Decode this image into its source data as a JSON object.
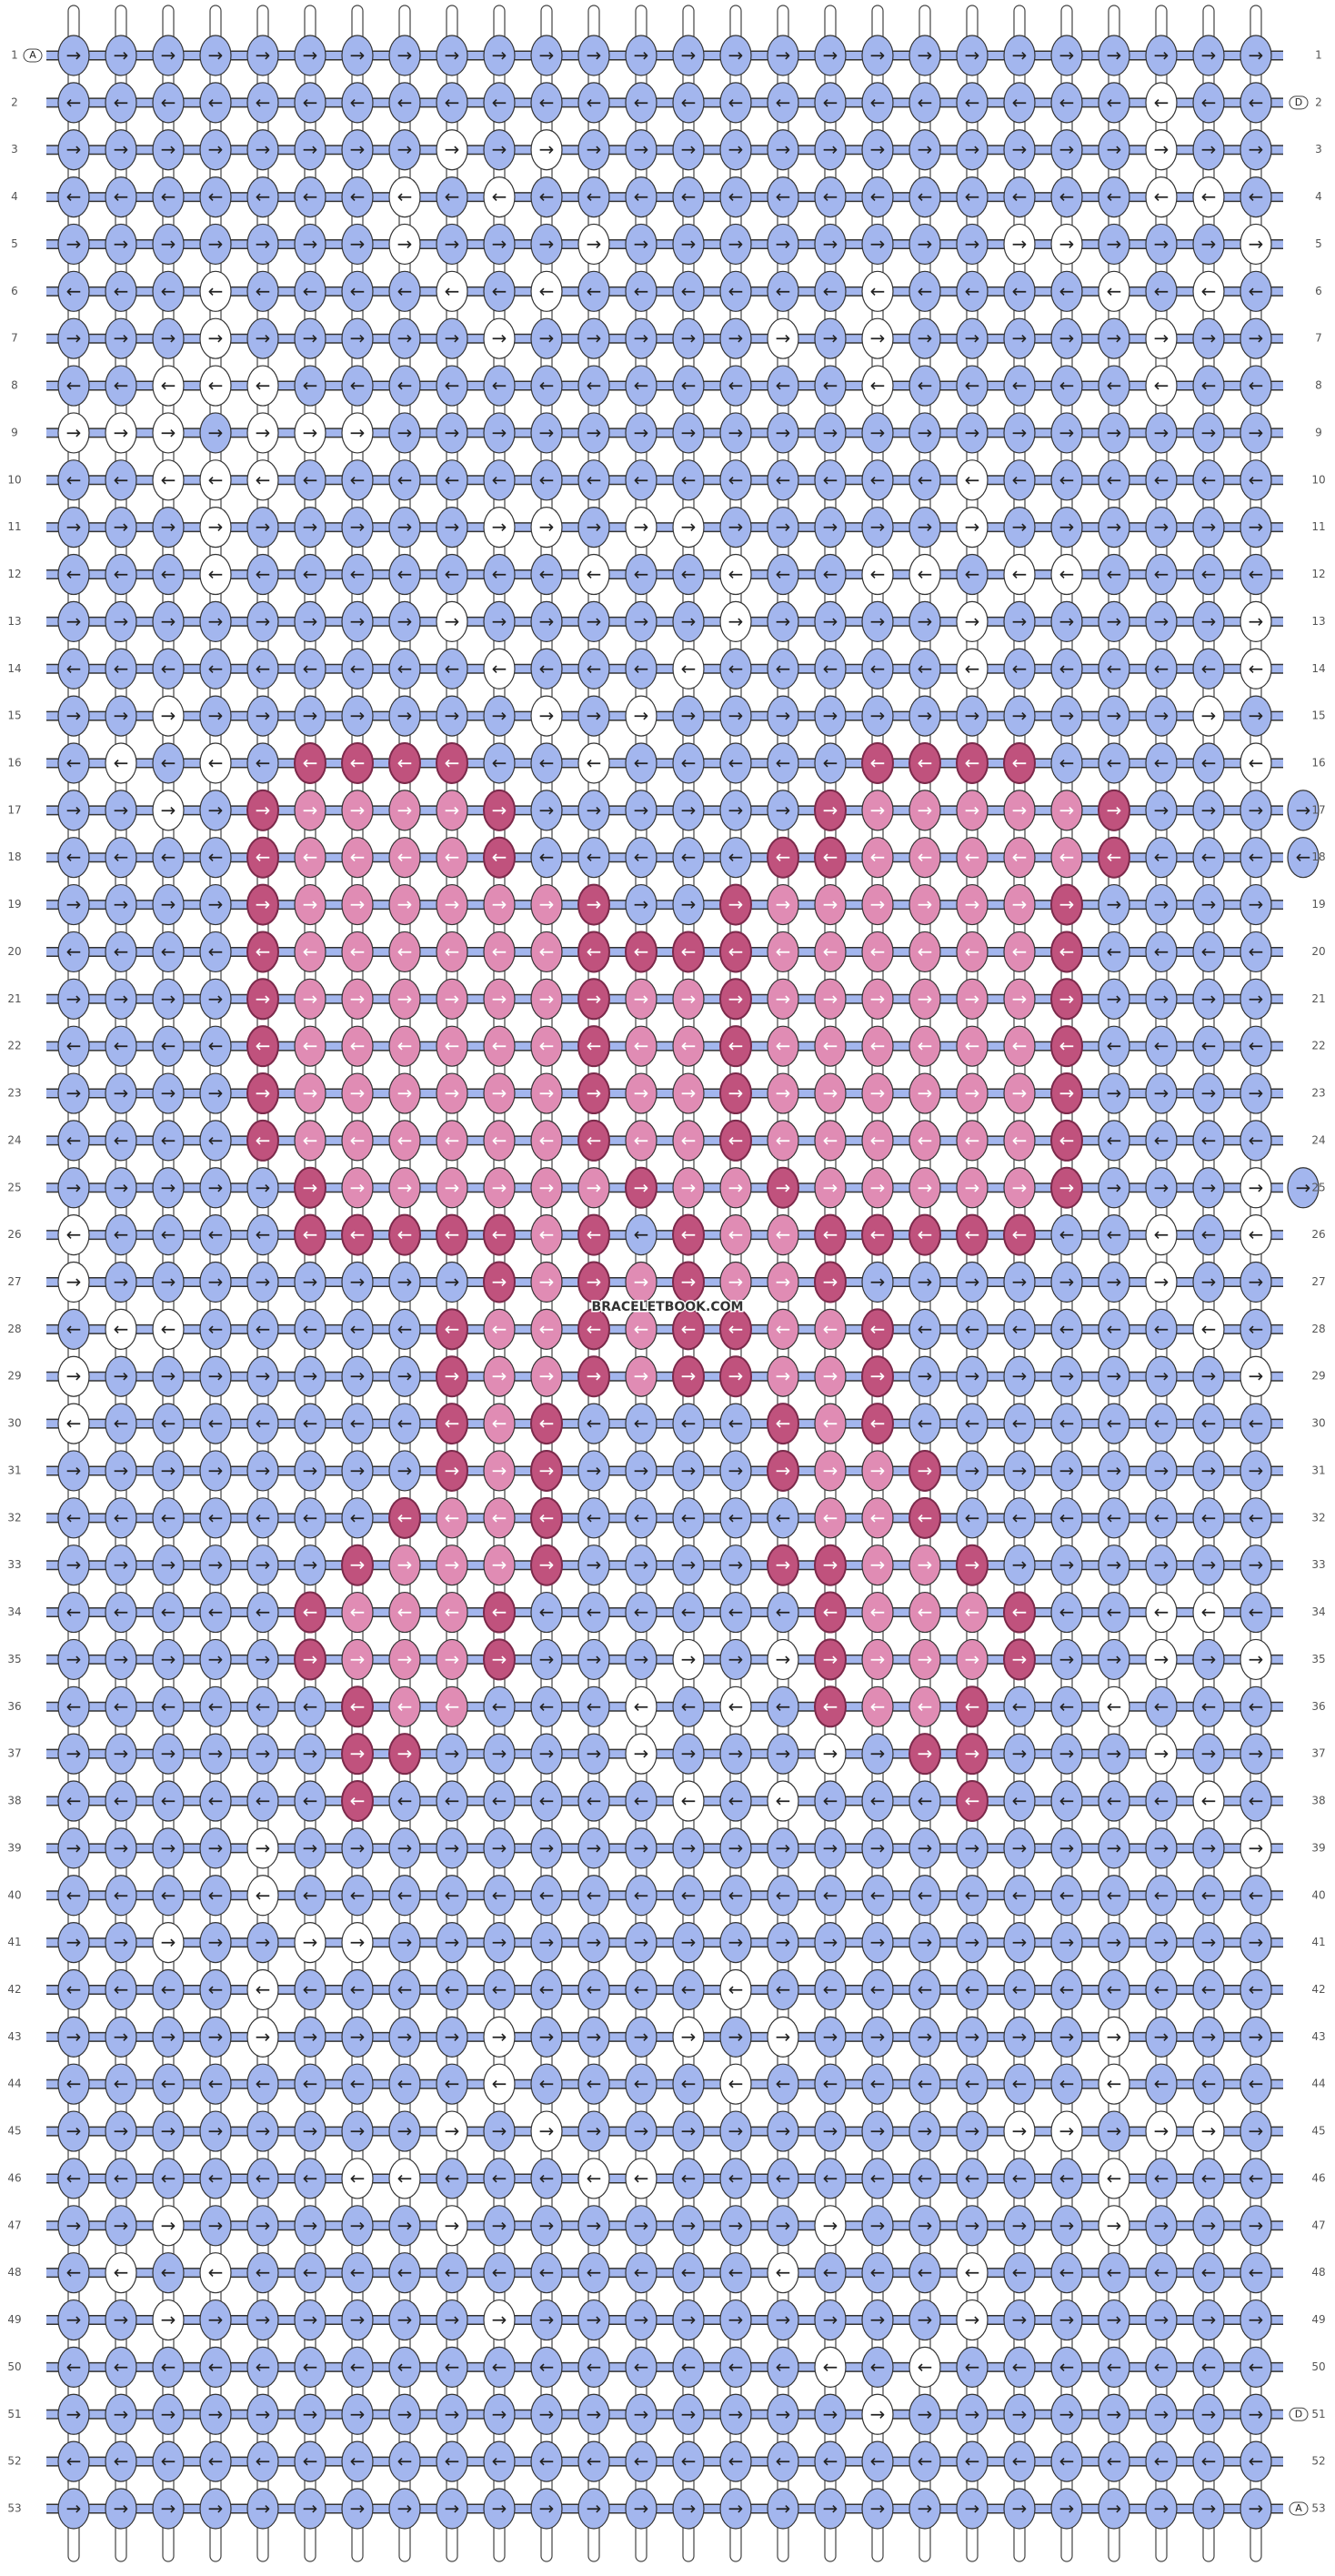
{
  "pattern": {
    "watermark": "BRACELETBOOK.COM",
    "arrows": [
      "→",
      "←"
    ],
    "strand_labels": [
      "A",
      "D"
    ],
    "row_labels": [
      1,
      2,
      3,
      4,
      5,
      6,
      7,
      8,
      9,
      10,
      11,
      12,
      13,
      14,
      15,
      16,
      17,
      18,
      19,
      20,
      21,
      22,
      23,
      24,
      25,
      26,
      27,
      28,
      29,
      30,
      31,
      32,
      33,
      34,
      35,
      36,
      37,
      38,
      39,
      40,
      41,
      42,
      43,
      44,
      45,
      46,
      47,
      48,
      49,
      50,
      51,
      52,
      53
    ],
    "colors": {
      "b": "#a3b6ee",
      "w": "#ffffff",
      "l": "#e08cb4",
      "d": "#c0527d"
    },
    "rows": [
      "bbbbbbbbbbbbbbbbbbbbbbbbbb",
      "bbbbbbbbbbbbbbbbbbbbbbbwbb",
      "bbbbbbbbwbwbbbbbbbbbbbbwbb",
      "bbbbbbbwbwbbbbbbbbbbbbbwwb",
      "bbbbbbbwbbbwbbbbbbbbwwbbbw",
      "bbbwbbbbwbwbbbbbbwbbbbwbwb",
      "bbbwbbbbbwbbbbbwbwbbbbbwbb",
      "bbwwwbbbbbbbbbbbbwbbbbbwbb",
      "wwwbwwwbbbbbbbbbbbbbbbbbbb",
      "bbwwwbbbbbbbbbbbbbbwbbbbbb",
      "bbbwbbbbbwwbwwbbbbbwbbbbbb",
      "bbbwbbbbbbbwbbwbbwwbwwbbbb",
      "bbbbbbbbwbbbbbwbbbbwbbbbbw",
      "bbbbbbbbbwbbbwbbbbbwbbbbbw",
      "bbwbbbbbbbwbwbbbbbbbbbbbwb",
      "bwbwbddddbbwbbbbbddddbbbbw",
      "bbwbdlllldbbbbbbdllllldbbbb",
      "bbbbdlllldbbbbbddllllldbbbb",
      "bbbbdlllllldbbdlllllldbbbb",
      "bbbbdllllllddddlllllldbbbb",
      "bbbbdlllllldlldlllllldbbbb",
      "bbbbdlllllldlldlllllldbbbb",
      "bbbbdlllllldlldlllllldbbbb",
      "bbbbdlllllldlldlllllldbbbb",
      "bbbbbdlllllldlldllllldbbbwb",
      "wbbbbdddddldbdlldddddbbwbw",
      "wbbbbbbbbdldldlldbbbbbbwbb",
      "bwwbbbbbdlldlddlldbbbbbbwb",
      "wbbbbbbbdlldlddlldbbbbbbbw",
      "wbbbbbbbdldbbbbdldbbbbbbbb",
      "bbbbbbbbdldbbbbdlldbbbbbbb",
      "bbbbbbbdlldbbbbblldbbbbbbb",
      "bbbbbbdllldbbbbddlldbbbbbb",
      "bbbbbdllldbbbbbbdllldbbwwb",
      "bbbbbdllldbbbwbwdllldbbwbw",
      "bbbbbbdllbbbwbwbdlldbbwbbb",
      "bbbbbbddbbbbwbbbwbddbbbwbb",
      "bbbbbbdbbbbbbwbwbbbdbbbbwb",
      "bbbbwbbbbbbbbbbbbbbbbbbbbw",
      "bbbbwbbbbbbbbbbbbbbbbbbbbb",
      "bbwbbwwbbbbbbbbbbbbbbbbbbb",
      "bbbbwbbbbbbbbbwbbbbbbbbbbb",
      "bbbbwbbbbwbbbwbwbbbbbbwbbb",
      "bbbbbbbbbwbbbbwbbbbbbbwbbb",
      "bbbbbbbbwbwbbbbbbbbbwwbwwb",
      "bbbbbbwwbbbwwbbbbbbbbbwbbb",
      "bbwbbbbbwbbbbbbbwbbbbbwbbb",
      "bwbwbbbbbbbbbbbwbbbwbbbbbb",
      "bbwbbbbbbwbbbbbbbbbwbbbbbb",
      "bbbbbbbbbbbbbbbbwbwbbbbbbb",
      "bbbbbbbbbbbbbbbbbwbbbbbbbb",
      "bbbbbbbbbbbbbbbbbbbbbbbbbb",
      "bbbbbbbbbbbbbbbbbbbbbbbbbb"
    ]
  }
}
